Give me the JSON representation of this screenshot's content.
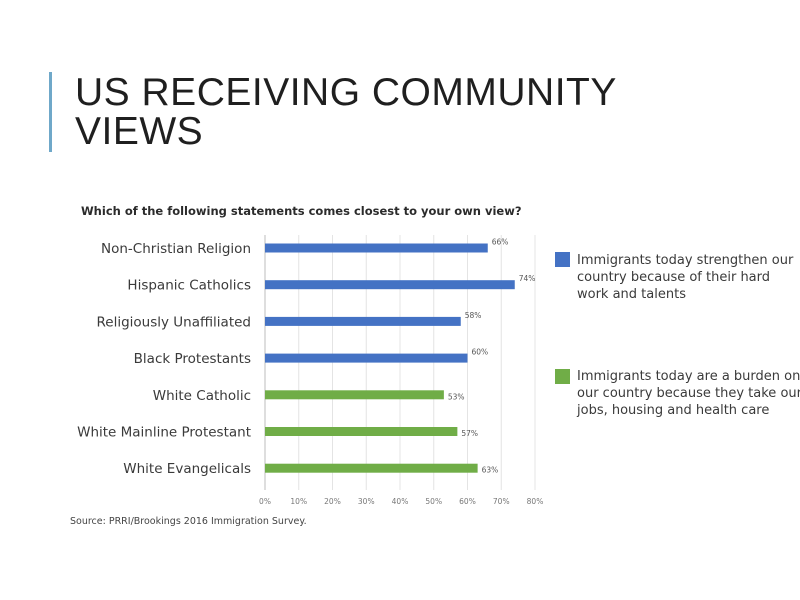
{
  "slide": {
    "title_line1": "US RECEIVING COMMUNITY",
    "title_line2": "VIEWS"
  },
  "colors": {
    "accent_bar": "#6fa8c9",
    "series_blue": "#4472c4",
    "series_green": "#70ad47"
  },
  "chart_data": {
    "type": "bar",
    "orientation": "horizontal",
    "title": "Which of the following statements comes closest to your own view?",
    "categories": [
      "Non-Christian Religion",
      "Hispanic Catholics",
      "Religiously Unaffiliated",
      "Black Protestants",
      "White Catholic",
      "White Mainline Protestant",
      "White Evangelicals"
    ],
    "values": [
      66,
      74,
      58,
      60,
      53,
      57,
      63
    ],
    "value_labels": [
      "66%",
      "74%",
      "58%",
      "60%",
      "53%",
      "57%",
      "63%"
    ],
    "bar_series": [
      "blue",
      "blue",
      "blue",
      "blue",
      "green",
      "green",
      "green"
    ],
    "series": [
      {
        "key": "blue",
        "name": "Immigrants today strengthen our country because of their hard work and talents",
        "color": "#4472c4"
      },
      {
        "key": "green",
        "name": "Immigrants today are a burden on our country because they take our jobs, housing and health care",
        "color": "#70ad47"
      }
    ],
    "xlim": [
      0,
      80
    ],
    "xticks": [
      "0%",
      "10%",
      "20%",
      "30%",
      "40%",
      "50%",
      "60%",
      "70%",
      "80%"
    ],
    "grid": true,
    "legend_position": "right",
    "source": "Source: PRRI/Brookings 2016 Immigration Survey."
  }
}
